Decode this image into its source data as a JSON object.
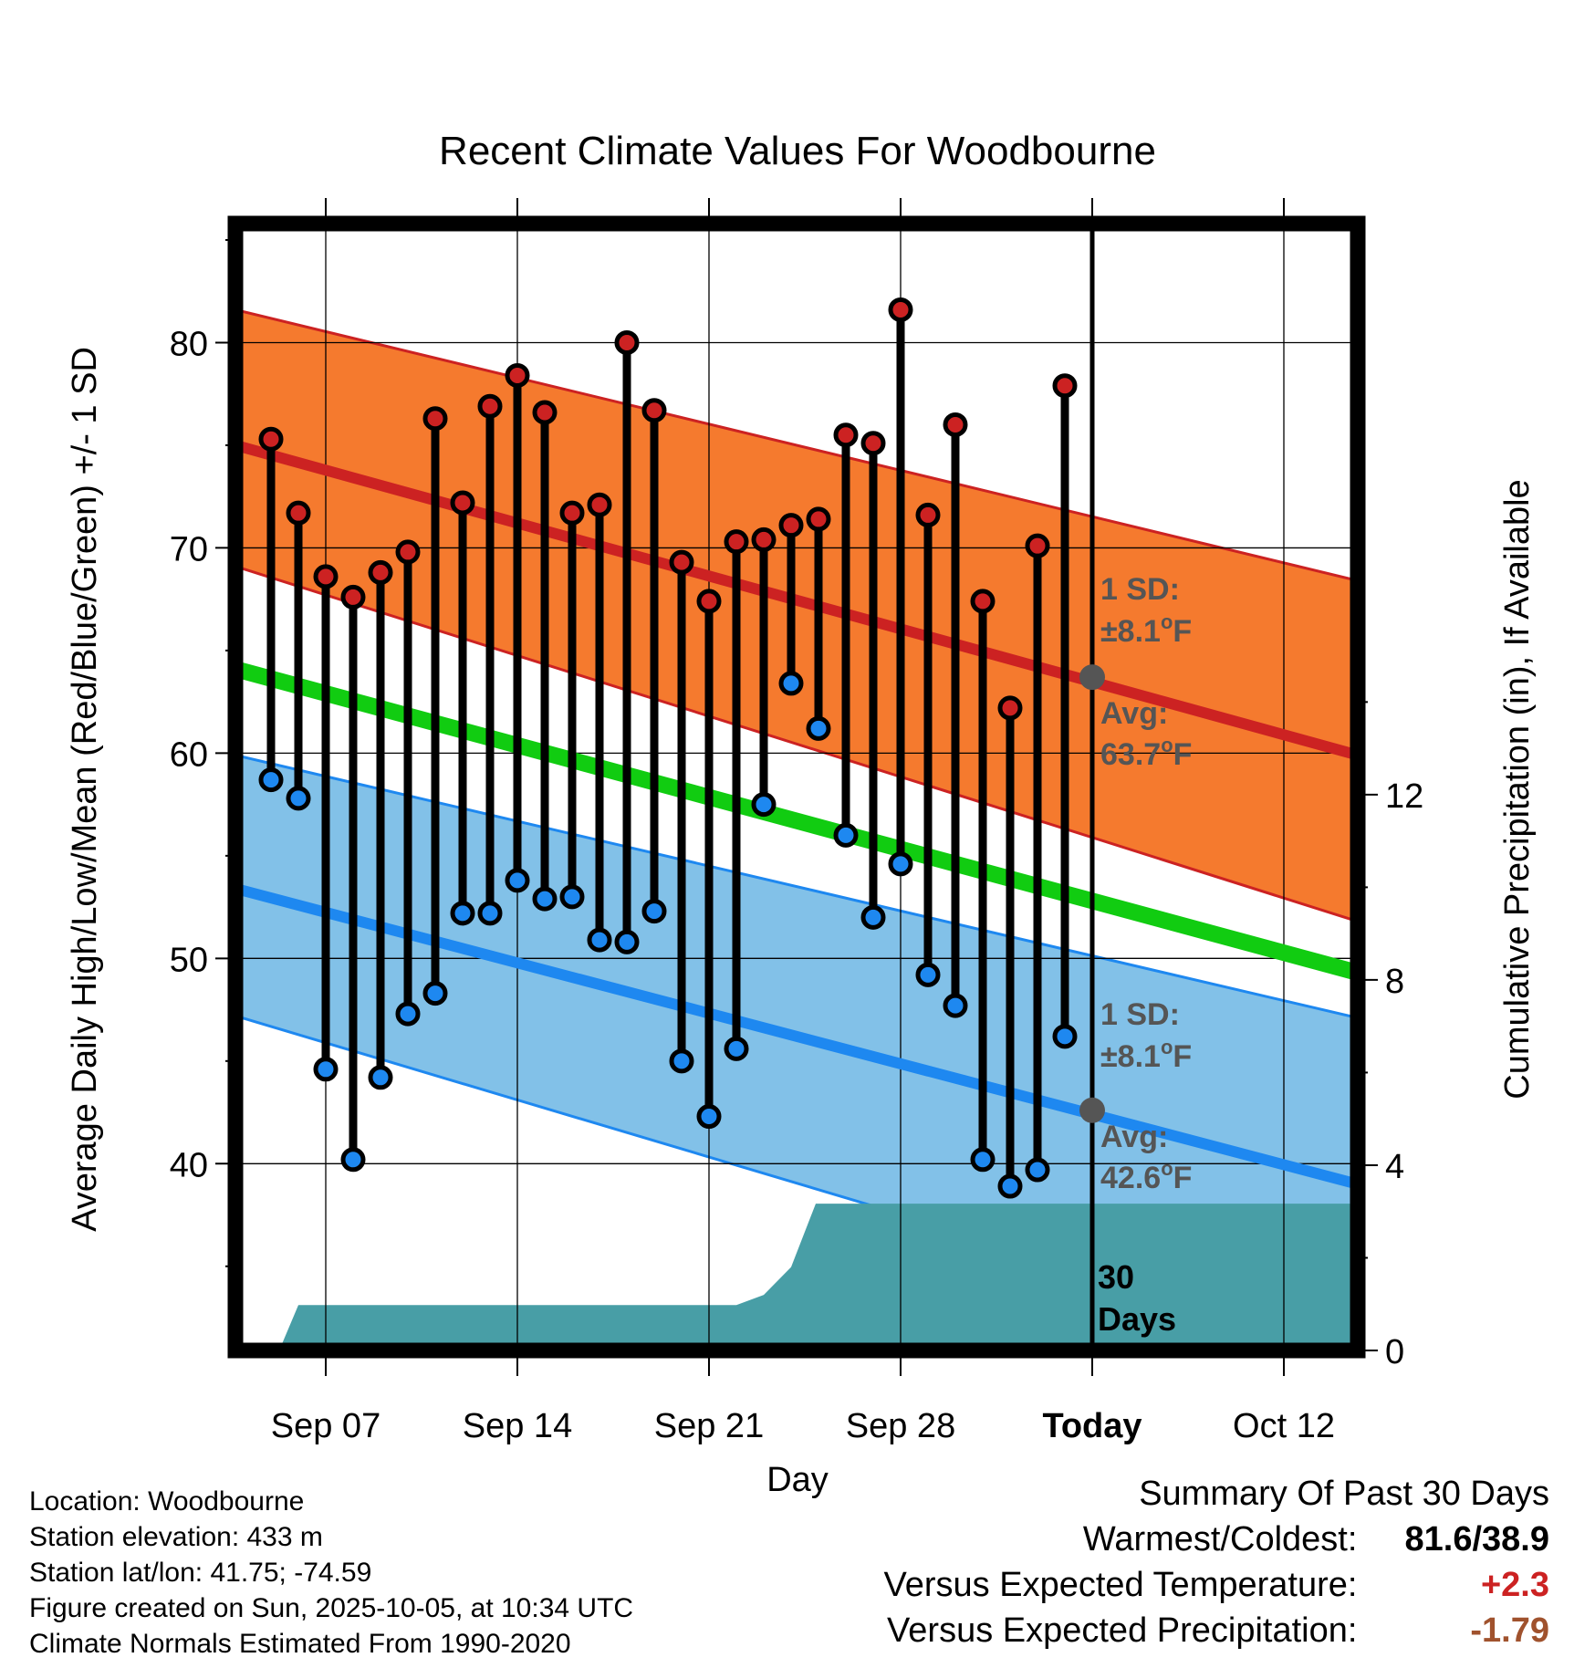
{
  "chart_data": {
    "type": "line",
    "title": "Recent Climate Values For Woodbourne",
    "xlabel": "Day",
    "ylabel_left": "Average Daily High/Low/Mean (Red/Blue/Green) +/- 1 SD",
    "ylabel_right": "Cumulative Precipitation (in), If Available",
    "y_ticks": [
      "40",
      "50",
      "60",
      "70",
      "80"
    ],
    "y_right_ticks": [
      "0",
      "4",
      "8",
      "12"
    ],
    "x_ticks": [
      "Sep 07",
      "Sep 14",
      "Sep 21",
      "Sep 28",
      "Today",
      "Oct 12"
    ],
    "ylim": [
      30.9,
      85.8
    ],
    "y_right_lim": [
      0,
      24.33
    ],
    "x_day_range": [
      -31.3,
      9.7
    ],
    "x_tick_days": [
      -28,
      -21,
      -14,
      -7,
      0,
      7
    ],
    "normals": {
      "day": [
        -31.3,
        9.7
      ],
      "high_avg": [
        75.0,
        59.9
      ],
      "high_upper": [
        81.6,
        68.4
      ],
      "high_lower": [
        69.1,
        51.8
      ],
      "low_avg": [
        53.4,
        39.0
      ],
      "low_upper": [
        59.9,
        47.1
      ],
      "low_lower": [
        47.2,
        30.9
      ],
      "mean_avg": [
        64.1,
        49.3
      ]
    },
    "observations": {
      "day": [
        -30,
        -29,
        -28,
        -27,
        -26,
        -25,
        -24,
        -23,
        -22,
        -21,
        -20,
        -19,
        -18,
        -17,
        -16,
        -15,
        -14,
        -13,
        -12,
        -11,
        -10,
        -9,
        -8,
        -7,
        -6,
        -5,
        -4,
        -3,
        -2,
        -1
      ],
      "high": [
        75.3,
        71.7,
        68.6,
        67.6,
        68.8,
        69.8,
        76.3,
        72.2,
        76.9,
        78.4,
        76.6,
        71.7,
        72.1,
        80.0,
        76.7,
        69.3,
        67.4,
        70.3,
        70.4,
        71.1,
        71.4,
        75.5,
        75.1,
        81.6,
        71.6,
        76.0,
        67.4,
        62.2,
        70.1,
        77.9
      ],
      "low": [
        58.7,
        57.8,
        44.6,
        40.2,
        44.2,
        47.3,
        48.3,
        52.2,
        52.2,
        53.8,
        52.9,
        53.0,
        50.9,
        50.8,
        52.3,
        45.0,
        42.3,
        45.6,
        57.5,
        63.4,
        61.2,
        56.0,
        52.0,
        54.6,
        49.2,
        47.7,
        40.2,
        38.9,
        39.7,
        46.2
      ]
    },
    "precip": {
      "day": [
        -30,
        -29.7,
        -29,
        -15,
        -14,
        -13,
        -12,
        -11,
        -10.1,
        10
      ],
      "cumulative": [
        0,
        0,
        0.98,
        0.98,
        0.98,
        0.98,
        1.2,
        1.8,
        3.17,
        3.17
      ]
    },
    "precip_label": [
      "30",
      "Days"
    ],
    "annotations": {
      "high": {
        "sd_title": "1 SD:",
        "sd_value": "±8.1",
        "avg_title": "Avg:",
        "avg_value": "63.7",
        "unit": "F",
        "degree": "o",
        "avg_marker": 63.7
      },
      "low": {
        "sd_title": "1 SD:",
        "sd_value": "±8.1",
        "avg_title": "Avg:",
        "avg_value": "42.6",
        "unit": "F",
        "degree": "o",
        "avg_marker": 42.6
      }
    },
    "colors": {
      "high_band": "#f57a2e",
      "high_line": "#cc2222",
      "low_band": "#82c1e8",
      "low_line": "#1e88f0",
      "mean_line": "#11cc11",
      "precip_fill": "#489ea6",
      "high_dot": "#cc2222",
      "low_dot": "#1e88f0",
      "annotation": "#555555",
      "frame": "#000000"
    }
  },
  "footer": {
    "location": "Location: Woodbourne",
    "elevation": "Station elevation: 433 m",
    "latlon": "Station lat/lon: 41.75; -74.59",
    "created": "Figure created on Sun, 2025-10-05, at 10:34 UTC",
    "normals": "Climate Normals Estimated From 1990-2020"
  },
  "summary": {
    "title": "Summary Of Past 30 Days",
    "warm_cold_label": "Warmest/Coldest:",
    "warm_cold_value": "81.6/38.9",
    "temp_label": "Versus Expected Temperature:",
    "temp_value": "+2.3",
    "temp_color": "#cc2222",
    "precip_label": "Versus Expected Precipitation:",
    "precip_value": "-1.79",
    "precip_color": "#a0522d"
  }
}
